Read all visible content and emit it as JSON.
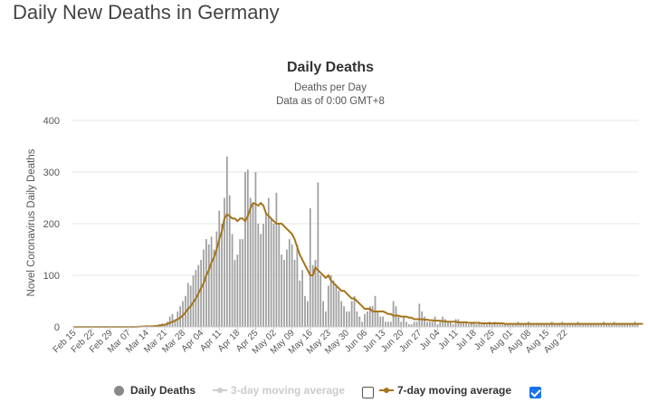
{
  "page": {
    "title": "Daily New Deaths in Germany"
  },
  "chart_data": {
    "type": "bar",
    "title": "Daily Deaths",
    "subtitle": [
      "Deaths per Day",
      "Data as of 0:00 GMT+8"
    ],
    "xlabel": "",
    "ylabel": "Novel Coronavirus Daily Deaths",
    "ylim": [
      0,
      400
    ],
    "yticks": [
      0,
      100,
      200,
      300,
      400
    ],
    "grid": true,
    "legend_position": "bottom",
    "x_tick_labels": [
      "Feb 15",
      "Feb 22",
      "Feb 29",
      "Mar 07",
      "Mar 14",
      "Mar 21",
      "Mar 28",
      "Apr 04",
      "Apr 11",
      "Apr 18",
      "Apr 25",
      "May 02",
      "May 09",
      "May 16",
      "May 23",
      "May 30",
      "Jun 06",
      "Jun 13",
      "Jun 20",
      "Jun 27",
      "Jul 04",
      "Jul 11",
      "Jul 18",
      "Jul 25",
      "Aug 01",
      "Aug 08",
      "Aug 15",
      "Aug 22"
    ],
    "x_start": "Feb 15",
    "series": [
      {
        "name": "Daily Deaths",
        "kind": "bar",
        "color": "#a0a0a0",
        "values": [
          0,
          0,
          0,
          0,
          0,
          0,
          0,
          0,
          0,
          0,
          0,
          0,
          0,
          0,
          0,
          0,
          0,
          0,
          0,
          0,
          0,
          0,
          0,
          0,
          0,
          1,
          1,
          1,
          1,
          0,
          1,
          2,
          3,
          5,
          7,
          6,
          10,
          20,
          25,
          15,
          30,
          40,
          50,
          60,
          85,
          80,
          100,
          110,
          120,
          130,
          150,
          170,
          160,
          175,
          150,
          185,
          225,
          200,
          250,
          330,
          255,
          180,
          130,
          140,
          170,
          170,
          300,
          305,
          250,
          240,
          300,
          200,
          180,
          200,
          220,
          250,
          210,
          200,
          260,
          200,
          140,
          130,
          150,
          170,
          160,
          130,
          160,
          90,
          110,
          60,
          50,
          230,
          120,
          130,
          280,
          100,
          50,
          30,
          80,
          100,
          90,
          80,
          70,
          50,
          40,
          30,
          30,
          50,
          60,
          30,
          20,
          10,
          25,
          30,
          40,
          40,
          60,
          30,
          20,
          20,
          10,
          10,
          10,
          50,
          40,
          20,
          10,
          20,
          10,
          5,
          5,
          10,
          10,
          45,
          30,
          20,
          10,
          10,
          10,
          20,
          5,
          10,
          20,
          15,
          10,
          10,
          5,
          15,
          15,
          10,
          10,
          10,
          5,
          10,
          10,
          5,
          10,
          5,
          5,
          5,
          10,
          5,
          10,
          5,
          5,
          5,
          5,
          5,
          5,
          5,
          5,
          10,
          5,
          5,
          5,
          10,
          5,
          5,
          5,
          5,
          5,
          5,
          5,
          5,
          10,
          5,
          5,
          5,
          10,
          5,
          5,
          5,
          5,
          5,
          10,
          5,
          5,
          5,
          5,
          5,
          5,
          5,
          5,
          5,
          10,
          5,
          5,
          5,
          10,
          5,
          5,
          5,
          5,
          5,
          5,
          5,
          10,
          5
        ]
      },
      {
        "name": "3-day moving average",
        "kind": "line",
        "color": "#cccccc",
        "visible": false
      },
      {
        "name": "7-day moving average",
        "kind": "line",
        "color": "#a6741c",
        "visible": true,
        "values": [
          0,
          0,
          0,
          0,
          0,
          0,
          0,
          0,
          0,
          0,
          0,
          0,
          0,
          0,
          0,
          0,
          0,
          0,
          0,
          0,
          0,
          0,
          0,
          0,
          0,
          0.4,
          0.6,
          0.8,
          1,
          1,
          1.2,
          1.6,
          2,
          2.6,
          3.4,
          4.4,
          5.6,
          8,
          10,
          12,
          15,
          18,
          22,
          28,
          35,
          40,
          48,
          55,
          65,
          75,
          85,
          100,
          110,
          125,
          135,
          150,
          170,
          185,
          210,
          218,
          215,
          210,
          210,
          205,
          210,
          210,
          205,
          215,
          230,
          240,
          238,
          235,
          240,
          235,
          220,
          215,
          210,
          205,
          200,
          200,
          200,
          195,
          190,
          185,
          180,
          170,
          155,
          140,
          130,
          120,
          110,
          100,
          100,
          115,
          110,
          105,
          100,
          95,
          100,
          90,
          85,
          80,
          75,
          70,
          70,
          65,
          60,
          55,
          55,
          50,
          45,
          40,
          35,
          35,
          35,
          30,
          30,
          30,
          30,
          30,
          28,
          25,
          25,
          22,
          22,
          22,
          20,
          20,
          20,
          18,
          18,
          15,
          15,
          15,
          15,
          14,
          14,
          13,
          13,
          12,
          12,
          12,
          11,
          11,
          10,
          10,
          10,
          10,
          9,
          9,
          9,
          9,
          8,
          8,
          8,
          8,
          8,
          7,
          7,
          7,
          7,
          7,
          7,
          7,
          7,
          7,
          6,
          6,
          6,
          6,
          6,
          6,
          6,
          6,
          6,
          6,
          6,
          6,
          6,
          6,
          6,
          6,
          6,
          6,
          6,
          6,
          6,
          6,
          6,
          6,
          6,
          6,
          6,
          6,
          6,
          6,
          6,
          6,
          6,
          6,
          6,
          6,
          6,
          6,
          6,
          6,
          6,
          6,
          6,
          6,
          6,
          6,
          6,
          6,
          6,
          6,
          6,
          6,
          6,
          6
        ]
      }
    ]
  },
  "legend": {
    "items": [
      {
        "label": "Daily Deaths",
        "color": "#888888",
        "marker": "dot-icon",
        "active": true
      },
      {
        "label": "3-day moving average",
        "color": "#cccccc",
        "marker": "line-dot-icon",
        "active": false
      },
      {
        "label": "7-day moving average",
        "color": "#a6741c",
        "marker": "line-dot-icon",
        "active": true
      }
    ],
    "checkboxes": [
      {
        "for": "3-day moving average",
        "checked": false
      },
      {
        "for": "7-day moving average",
        "checked": true
      }
    ]
  }
}
